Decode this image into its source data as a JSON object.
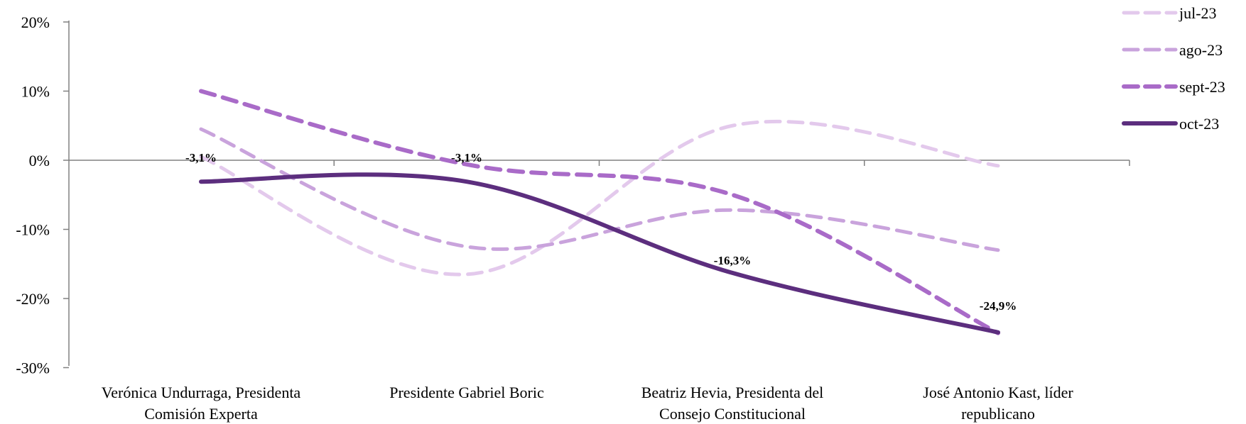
{
  "chart_data": {
    "type": "line",
    "categories": [
      [
        "Verónica Undurraga, Presidenta",
        "Comisión Experta"
      ],
      [
        "Presidente Gabriel Boric"
      ],
      [
        "Beatriz Hevia, Presidenta del",
        "Consejo Constitucional"
      ],
      [
        "José Antonio Kast,  líder",
        "republicano"
      ]
    ],
    "ylim": [
      -30,
      20
    ],
    "yticks": [
      20,
      10,
      0,
      -10,
      -20,
      -30
    ],
    "ytick_labels": [
      "20%",
      "10%",
      "0%",
      "-10%",
      "-20%",
      "-30%"
    ],
    "series": [
      {
        "name": "jul-23",
        "values": [
          0.5,
          -16.5,
          5.0,
          -0.8
        ],
        "color": "#e3c9ec",
        "style": "dashed",
        "width": 5
      },
      {
        "name": "ago-23",
        "values": [
          4.5,
          -12.5,
          -7.2,
          -13.0
        ],
        "color": "#c9a3dc",
        "style": "dashed",
        "width": 5
      },
      {
        "name": "sept-23",
        "values": [
          10.0,
          -0.6,
          -5.0,
          -25.0
        ],
        "color": "#a96bc8",
        "style": "dashed",
        "width": 6
      },
      {
        "name": "oct-23",
        "values": [
          -3.1,
          -3.1,
          -16.3,
          -24.9
        ],
        "color": "#5c2e7e",
        "style": "solid",
        "width": 6
      }
    ],
    "data_labels": [
      "-3,1%",
      "-3,1%",
      "-16,3%",
      "-24,9%"
    ],
    "legend": "top-right",
    "grid": false
  }
}
